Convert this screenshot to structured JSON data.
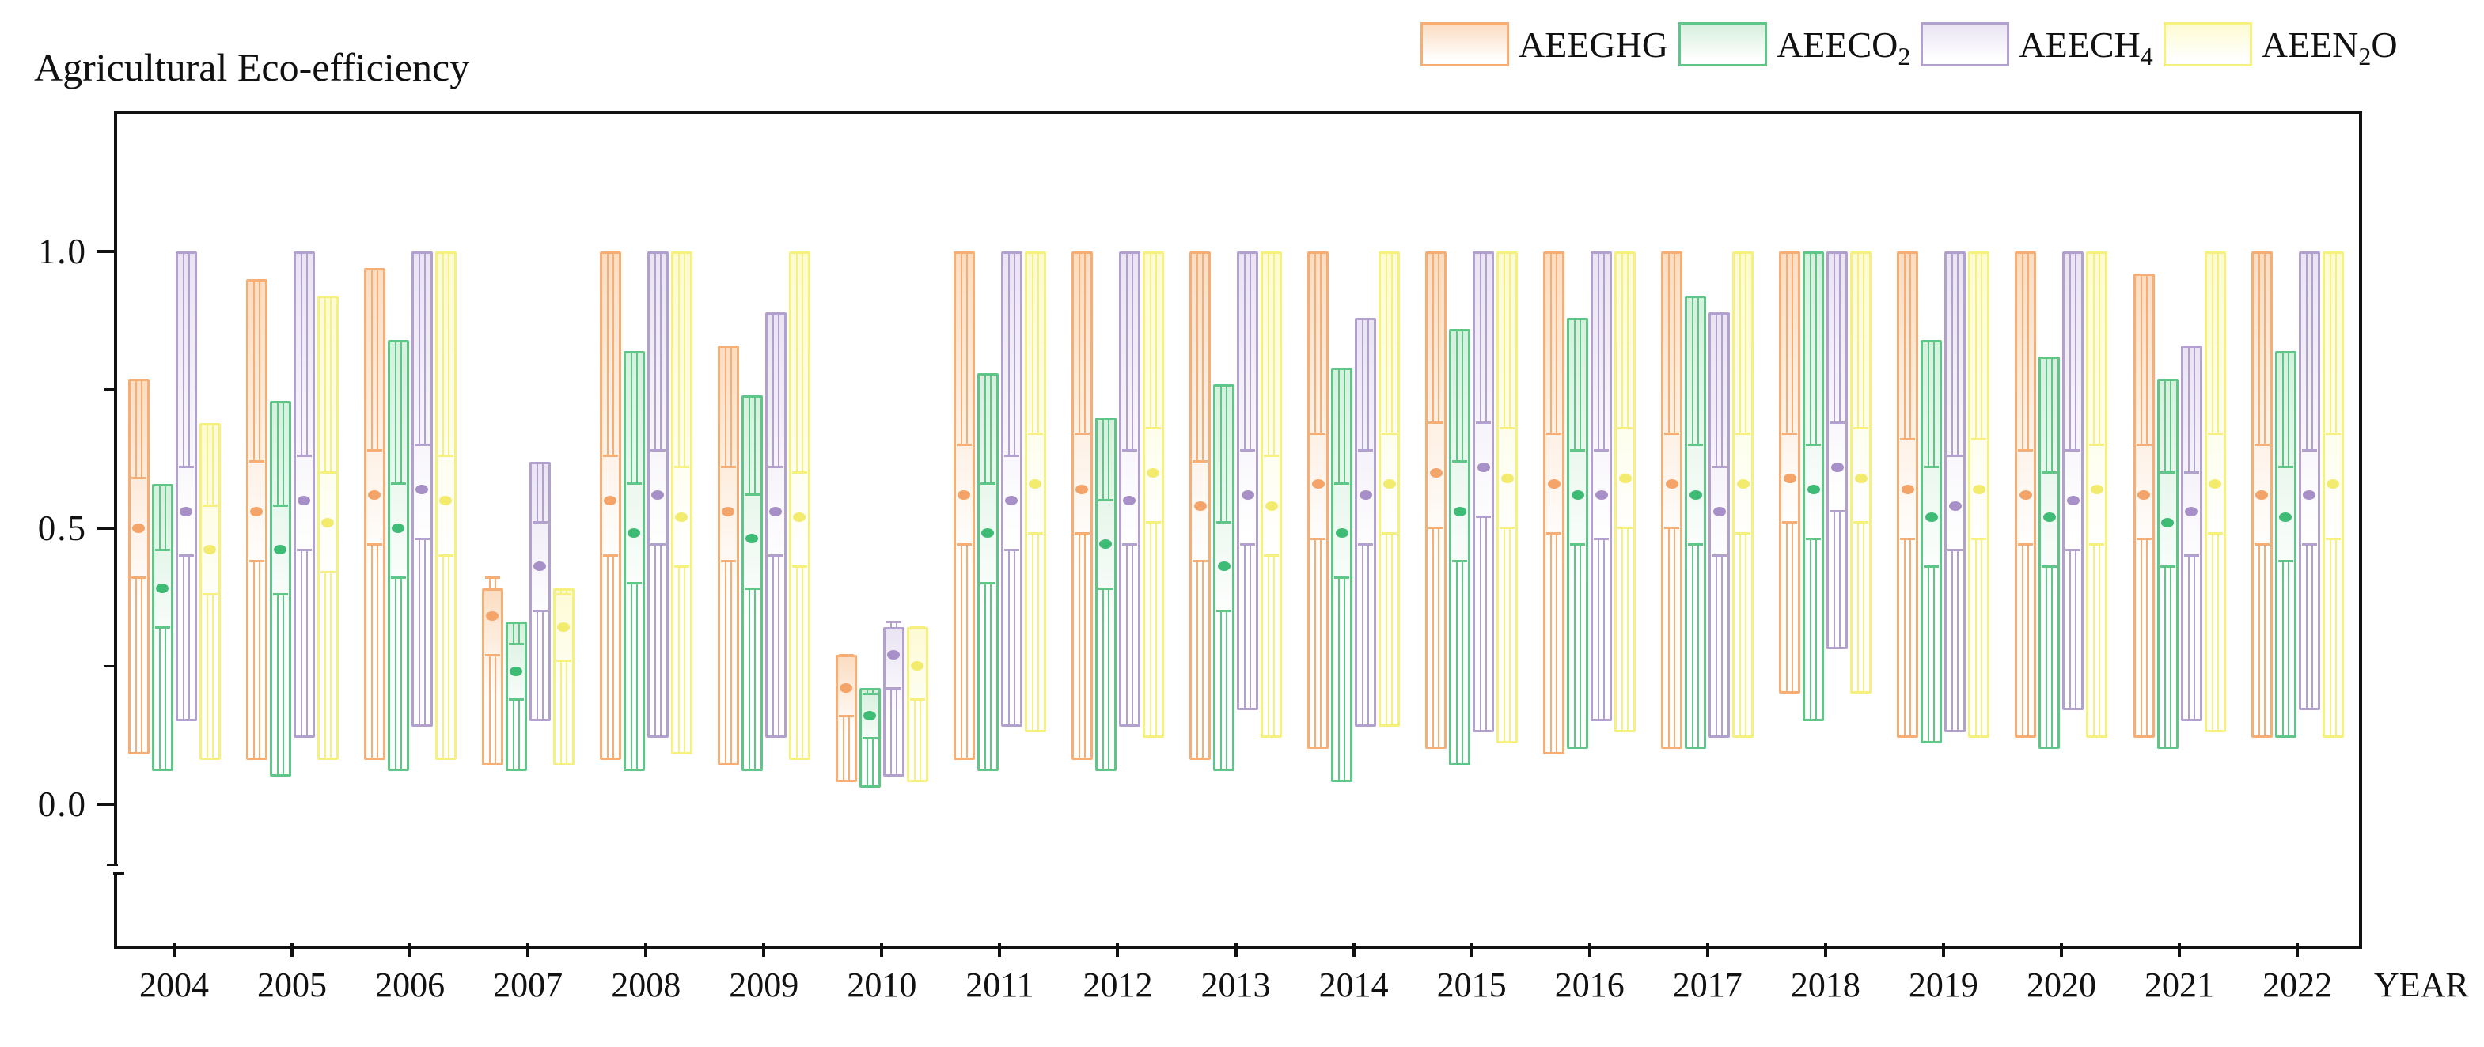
{
  "title": "Agricultural Eco-efficiency",
  "axis": {
    "x_label": "YEAR",
    "y_tick_labels": [
      "1.0",
      "0.5",
      "0.0"
    ],
    "y_tick_values": [
      1.0,
      0.5,
      0.0
    ],
    "y_minor_tick_values": [
      0.75,
      0.25
    ],
    "has_axis_break_below_zero": true
  },
  "legend": {
    "items": [
      {
        "key": "aeeghg",
        "base": "AEEGHG",
        "sub": "",
        "post": ""
      },
      {
        "key": "aeeco2",
        "base": "AEECO",
        "sub": "2",
        "post": ""
      },
      {
        "key": "aeech4",
        "base": "AEECH",
        "sub": "4",
        "post": ""
      },
      {
        "key": "aeen2o",
        "base": "AEEN",
        "sub": "2",
        "post": "O"
      }
    ]
  },
  "chart_data": {
    "type": "box",
    "title": "Agricultural Eco-efficiency",
    "xlabel": "YEAR",
    "ylabel": "",
    "categories": [
      2004,
      2005,
      2006,
      2007,
      2008,
      2009,
      2010,
      2011,
      2012,
      2013,
      2014,
      2015,
      2016,
      2017,
      2018,
      2019,
      2020,
      2021,
      2022
    ],
    "ylim": [
      -0.26,
      1.25
    ],
    "y_major_ticks": [
      0.0,
      0.5,
      1.0
    ],
    "y_minor_ticks": [
      0.25,
      0.75
    ],
    "grid": false,
    "legend_position": "top-right",
    "box_format": [
      "low",
      "high",
      "mean",
      "whisker_low",
      "whisker_high"
    ],
    "series": [
      {
        "name": "AEEGHG",
        "border_color": "#F6AE74",
        "fill_top_color": "#FBDDC2",
        "dot_color": "#F4A468",
        "boxes": [
          [
            0.09,
            0.77,
            0.5,
            0.41,
            0.59
          ],
          [
            0.08,
            0.95,
            0.53,
            0.44,
            0.62
          ],
          [
            0.08,
            0.97,
            0.56,
            0.47,
            0.64
          ],
          [
            0.07,
            0.39,
            0.34,
            0.27,
            0.41
          ],
          [
            0.08,
            1.0,
            0.55,
            0.45,
            0.63
          ],
          [
            0.07,
            0.83,
            0.53,
            0.44,
            0.61
          ],
          [
            0.04,
            0.27,
            0.21,
            0.16,
            0.27
          ],
          [
            0.08,
            1.0,
            0.56,
            0.47,
            0.65
          ],
          [
            0.08,
            1.0,
            0.57,
            0.49,
            0.67
          ],
          [
            0.08,
            1.0,
            0.54,
            0.44,
            0.62
          ],
          [
            0.1,
            1.0,
            0.58,
            0.48,
            0.67
          ],
          [
            0.1,
            1.0,
            0.6,
            0.5,
            0.69
          ],
          [
            0.09,
            1.0,
            0.58,
            0.49,
            0.67
          ],
          [
            0.1,
            1.0,
            0.58,
            0.5,
            0.67
          ],
          [
            0.2,
            1.0,
            0.59,
            0.51,
            0.67
          ],
          [
            0.12,
            1.0,
            0.57,
            0.48,
            0.66
          ],
          [
            0.12,
            1.0,
            0.56,
            0.47,
            0.64
          ],
          [
            0.12,
            0.96,
            0.56,
            0.48,
            0.65
          ],
          [
            0.12,
            1.0,
            0.56,
            0.47,
            0.65
          ]
        ]
      },
      {
        "name": "AEECO2",
        "border_color": "#5EC686",
        "fill_top_color": "#D7F0DE",
        "dot_color": "#3EBC76",
        "boxes": [
          [
            0.06,
            0.58,
            0.39,
            0.32,
            0.46
          ],
          [
            0.05,
            0.73,
            0.46,
            0.38,
            0.54
          ],
          [
            0.06,
            0.84,
            0.5,
            0.41,
            0.58
          ],
          [
            0.06,
            0.33,
            0.24,
            0.19,
            0.29
          ],
          [
            0.06,
            0.82,
            0.49,
            0.4,
            0.58
          ],
          [
            0.06,
            0.74,
            0.48,
            0.39,
            0.56
          ],
          [
            0.03,
            0.21,
            0.16,
            0.12,
            0.2
          ],
          [
            0.06,
            0.78,
            0.49,
            0.4,
            0.58
          ],
          [
            0.06,
            0.7,
            0.47,
            0.39,
            0.55
          ],
          [
            0.06,
            0.76,
            0.43,
            0.35,
            0.51
          ],
          [
            0.04,
            0.79,
            0.49,
            0.41,
            0.58
          ],
          [
            0.07,
            0.86,
            0.53,
            0.44,
            0.62
          ],
          [
            0.1,
            0.88,
            0.56,
            0.47,
            0.64
          ],
          [
            0.1,
            0.92,
            0.56,
            0.47,
            0.65
          ],
          [
            0.15,
            1.0,
            0.57,
            0.48,
            0.65
          ],
          [
            0.11,
            0.84,
            0.52,
            0.43,
            0.61
          ],
          [
            0.1,
            0.81,
            0.52,
            0.43,
            0.6
          ],
          [
            0.1,
            0.77,
            0.51,
            0.43,
            0.6
          ],
          [
            0.12,
            0.82,
            0.52,
            0.44,
            0.61
          ]
        ]
      },
      {
        "name": "AEECH4",
        "border_color": "#B2A0CF",
        "fill_top_color": "#EAE4F3",
        "dot_color": "#A78FC7",
        "boxes": [
          [
            0.15,
            1.0,
            0.53,
            0.45,
            0.61
          ],
          [
            0.12,
            1.0,
            0.55,
            0.46,
            0.63
          ],
          [
            0.14,
            1.0,
            0.57,
            0.48,
            0.65
          ],
          [
            0.15,
            0.62,
            0.43,
            0.35,
            0.51
          ],
          [
            0.12,
            1.0,
            0.56,
            0.47,
            0.64
          ],
          [
            0.12,
            0.89,
            0.53,
            0.45,
            0.61
          ],
          [
            0.05,
            0.32,
            0.27,
            0.21,
            0.33
          ],
          [
            0.14,
            1.0,
            0.55,
            0.46,
            0.63
          ],
          [
            0.14,
            1.0,
            0.55,
            0.47,
            0.64
          ],
          [
            0.17,
            1.0,
            0.56,
            0.47,
            0.64
          ],
          [
            0.14,
            0.88,
            0.56,
            0.47,
            0.64
          ],
          [
            0.13,
            1.0,
            0.61,
            0.52,
            0.69
          ],
          [
            0.15,
            1.0,
            0.56,
            0.48,
            0.64
          ],
          [
            0.12,
            0.89,
            0.53,
            0.45,
            0.61
          ],
          [
            0.28,
            1.0,
            0.61,
            0.53,
            0.69
          ],
          [
            0.13,
            1.0,
            0.54,
            0.46,
            0.63
          ],
          [
            0.17,
            1.0,
            0.55,
            0.46,
            0.64
          ],
          [
            0.15,
            0.83,
            0.53,
            0.45,
            0.6
          ],
          [
            0.17,
            1.0,
            0.56,
            0.47,
            0.64
          ]
        ]
      },
      {
        "name": "AEEN2O",
        "border_color": "#F6F07F",
        "fill_top_color": "#FDFBD3",
        "dot_color": "#F3EB6E",
        "boxes": [
          [
            0.08,
            0.69,
            0.46,
            0.38,
            0.54
          ],
          [
            0.08,
            0.92,
            0.51,
            0.42,
            0.6
          ],
          [
            0.08,
            1.0,
            0.55,
            0.45,
            0.63
          ],
          [
            0.07,
            0.39,
            0.32,
            0.26,
            0.38
          ],
          [
            0.09,
            1.0,
            0.52,
            0.43,
            0.61
          ],
          [
            0.08,
            1.0,
            0.52,
            0.43,
            0.6
          ],
          [
            0.04,
            0.32,
            0.25,
            0.19,
            0.32
          ],
          [
            0.13,
            1.0,
            0.58,
            0.49,
            0.67
          ],
          [
            0.12,
            1.0,
            0.6,
            0.51,
            0.68
          ],
          [
            0.12,
            1.0,
            0.54,
            0.45,
            0.63
          ],
          [
            0.14,
            1.0,
            0.58,
            0.49,
            0.67
          ],
          [
            0.11,
            1.0,
            0.59,
            0.5,
            0.68
          ],
          [
            0.13,
            1.0,
            0.59,
            0.5,
            0.68
          ],
          [
            0.12,
            1.0,
            0.58,
            0.49,
            0.67
          ],
          [
            0.2,
            1.0,
            0.59,
            0.51,
            0.68
          ],
          [
            0.12,
            1.0,
            0.57,
            0.48,
            0.66
          ],
          [
            0.12,
            1.0,
            0.57,
            0.47,
            0.65
          ],
          [
            0.13,
            1.0,
            0.58,
            0.49,
            0.67
          ],
          [
            0.12,
            1.0,
            0.58,
            0.48,
            0.67
          ]
        ]
      }
    ]
  }
}
